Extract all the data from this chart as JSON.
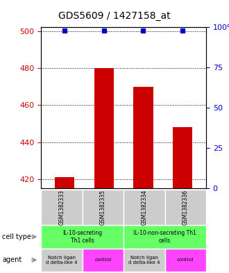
{
  "title": "GDS5609 / 1427158_at",
  "samples": [
    "GSM1382333",
    "GSM1382335",
    "GSM1382334",
    "GSM1382336"
  ],
  "count_values": [
    421,
    480,
    470,
    448
  ],
  "percentile_values": [
    98,
    98,
    98,
    98
  ],
  "ylim_left": [
    415,
    502
  ],
  "ylim_right": [
    0,
    100
  ],
  "yticks_left": [
    420,
    440,
    460,
    480,
    500
  ],
  "yticks_right": [
    0,
    25,
    50,
    75,
    100
  ],
  "bar_color": "#cc0000",
  "dot_color": "#0000cc",
  "bar_width": 0.5,
  "cell_type_labels": [
    "IL-10-secreting\nTh1 cells",
    "IL-10-non-secreting Th1\ncells"
  ],
  "cell_type_color": "#66ff66",
  "agent_labels": [
    "Notch ligan\nd delta-like 4",
    "control",
    "Notch ligan\nd delta-like 4",
    "control"
  ],
  "agent_color_notch": "#cccccc",
  "agent_color_control": "#ff44ff",
  "sample_bg_color": "#cccccc",
  "left_axis_color": "#cc0000",
  "right_axis_color": "#0000cc",
  "legend_count_color": "#cc0000",
  "legend_pct_color": "#0000cc"
}
